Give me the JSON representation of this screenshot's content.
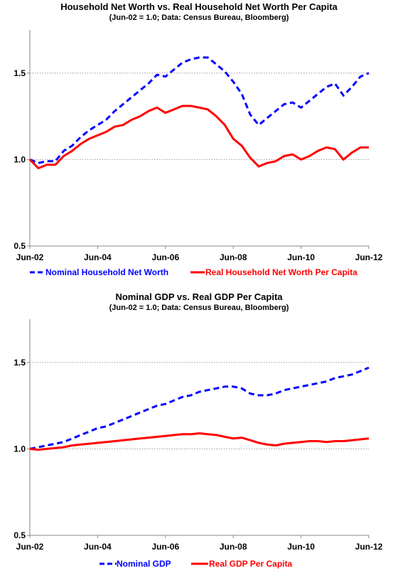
{
  "chart_data": [
    {
      "type": "line",
      "title": "Household Net Worth vs. Real Household Net Worth Per Capita",
      "subtitle": "(Jun-02 = 1.0; Data: Census Bureau, Bloomberg)",
      "x_tick_labels": [
        "Jun-02",
        "Jun-04",
        "Jun-06",
        "Jun-08",
        "Jun-10",
        "Jun-12"
      ],
      "y_tick_labels": [
        "0.5",
        "1.0",
        "1.5"
      ],
      "ylim": [
        0.5,
        1.75
      ],
      "xlim": [
        "2002-06",
        "2012-06"
      ],
      "grid": "horizontal dotted at 1.0 and 1.5",
      "legend_position": "bottom",
      "series": [
        {
          "name": "Nominal Household Net Worth",
          "color": "#0000ff",
          "style": "dashed",
          "x": [
            "2002-06",
            "2002-09",
            "2002-12",
            "2003-03",
            "2003-06",
            "2003-09",
            "2003-12",
            "2004-03",
            "2004-06",
            "2004-09",
            "2004-12",
            "2005-03",
            "2005-06",
            "2005-09",
            "2005-12",
            "2006-03",
            "2006-06",
            "2006-09",
            "2006-12",
            "2007-03",
            "2007-06",
            "2007-09",
            "2007-12",
            "2008-03",
            "2008-06",
            "2008-09",
            "2008-12",
            "2009-03",
            "2009-06",
            "2009-09",
            "2009-12",
            "2010-03",
            "2010-06",
            "2010-09",
            "2010-12",
            "2011-03",
            "2011-06",
            "2011-09",
            "2011-12",
            "2012-03",
            "2012-06"
          ],
          "values": [
            1.0,
            0.98,
            0.99,
            0.99,
            1.05,
            1.08,
            1.13,
            1.17,
            1.2,
            1.23,
            1.28,
            1.32,
            1.36,
            1.4,
            1.44,
            1.49,
            1.48,
            1.52,
            1.56,
            1.58,
            1.59,
            1.59,
            1.55,
            1.51,
            1.45,
            1.38,
            1.26,
            1.2,
            1.24,
            1.28,
            1.32,
            1.33,
            1.3,
            1.34,
            1.38,
            1.42,
            1.44,
            1.37,
            1.42,
            1.48,
            1.5
          ]
        },
        {
          "name": "Real Household Net Worth Per Capita",
          "color": "#ff0000",
          "style": "solid",
          "x": [
            "2002-06",
            "2002-09",
            "2002-12",
            "2003-03",
            "2003-06",
            "2003-09",
            "2003-12",
            "2004-03",
            "2004-06",
            "2004-09",
            "2004-12",
            "2005-03",
            "2005-06",
            "2005-09",
            "2005-12",
            "2006-03",
            "2006-06",
            "2006-09",
            "2006-12",
            "2007-03",
            "2007-06",
            "2007-09",
            "2007-12",
            "2008-03",
            "2008-06",
            "2008-09",
            "2008-12",
            "2009-03",
            "2009-06",
            "2009-09",
            "2009-12",
            "2010-03",
            "2010-06",
            "2010-09",
            "2010-12",
            "2011-03",
            "2011-06",
            "2011-09",
            "2011-12",
            "2012-03",
            "2012-06"
          ],
          "values": [
            1.0,
            0.95,
            0.97,
            0.97,
            1.02,
            1.05,
            1.09,
            1.12,
            1.14,
            1.16,
            1.19,
            1.2,
            1.23,
            1.25,
            1.28,
            1.3,
            1.27,
            1.29,
            1.31,
            1.31,
            1.3,
            1.29,
            1.25,
            1.2,
            1.12,
            1.08,
            1.01,
            0.96,
            0.98,
            0.99,
            1.02,
            1.03,
            1.0,
            1.02,
            1.05,
            1.07,
            1.06,
            1.0,
            1.04,
            1.07,
            1.07
          ]
        }
      ]
    },
    {
      "type": "line",
      "title": "Nominal GDP vs. Real GDP Per Capita",
      "subtitle": "(Jun-02 = 1.0; Data: Census Bureau, Bloomberg)",
      "x_tick_labels": [
        "Jun-02",
        "Jun-04",
        "Jun-06",
        "Jun-08",
        "Jun-10",
        "Jun-12"
      ],
      "y_tick_labels": [
        "0.5",
        "1.0",
        "1.5"
      ],
      "ylim": [
        0.5,
        1.75
      ],
      "xlim": [
        "2002-06",
        "2012-06"
      ],
      "grid": "horizontal dotted at 1.0 and 1.5",
      "legend_position": "bottom",
      "series": [
        {
          "name": "Nominal GDP",
          "color": "#0000ff",
          "style": "dashed",
          "x": [
            "2002-06",
            "2002-09",
            "2002-12",
            "2003-03",
            "2003-06",
            "2003-09",
            "2003-12",
            "2004-03",
            "2004-06",
            "2004-09",
            "2004-12",
            "2005-03",
            "2005-06",
            "2005-09",
            "2005-12",
            "2006-03",
            "2006-06",
            "2006-09",
            "2006-12",
            "2007-03",
            "2007-06",
            "2007-09",
            "2007-12",
            "2008-03",
            "2008-06",
            "2008-09",
            "2008-12",
            "2009-03",
            "2009-06",
            "2009-09",
            "2009-12",
            "2010-03",
            "2010-06",
            "2010-09",
            "2010-12",
            "2011-03",
            "2011-06",
            "2011-09",
            "2011-12",
            "2012-03",
            "2012-06"
          ],
          "values": [
            1.0,
            1.01,
            1.02,
            1.03,
            1.04,
            1.06,
            1.08,
            1.1,
            1.12,
            1.13,
            1.15,
            1.17,
            1.19,
            1.21,
            1.23,
            1.25,
            1.26,
            1.28,
            1.3,
            1.31,
            1.33,
            1.34,
            1.35,
            1.36,
            1.36,
            1.35,
            1.32,
            1.31,
            1.31,
            1.32,
            1.34,
            1.35,
            1.36,
            1.37,
            1.38,
            1.39,
            1.41,
            1.42,
            1.43,
            1.45,
            1.47
          ]
        },
        {
          "name": "Real GDP Per Capita",
          "color": "#ff0000",
          "style": "solid",
          "x": [
            "2002-06",
            "2002-09",
            "2002-12",
            "2003-03",
            "2003-06",
            "2003-09",
            "2003-12",
            "2004-03",
            "2004-06",
            "2004-09",
            "2004-12",
            "2005-03",
            "2005-06",
            "2005-09",
            "2005-12",
            "2006-03",
            "2006-06",
            "2006-09",
            "2006-12",
            "2007-03",
            "2007-06",
            "2007-09",
            "2007-12",
            "2008-03",
            "2008-06",
            "2008-09",
            "2008-12",
            "2009-03",
            "2009-06",
            "2009-09",
            "2009-12",
            "2010-03",
            "2010-06",
            "2010-09",
            "2010-12",
            "2011-03",
            "2011-06",
            "2011-09",
            "2011-12",
            "2012-03",
            "2012-06"
          ],
          "values": [
            1.0,
            0.995,
            1.0,
            1.005,
            1.01,
            1.02,
            1.025,
            1.03,
            1.035,
            1.04,
            1.045,
            1.05,
            1.055,
            1.06,
            1.065,
            1.07,
            1.075,
            1.08,
            1.085,
            1.085,
            1.09,
            1.085,
            1.08,
            1.07,
            1.06,
            1.065,
            1.05,
            1.035,
            1.025,
            1.02,
            1.03,
            1.035,
            1.04,
            1.045,
            1.045,
            1.04,
            1.045,
            1.045,
            1.05,
            1.055,
            1.06
          ]
        }
      ]
    }
  ]
}
